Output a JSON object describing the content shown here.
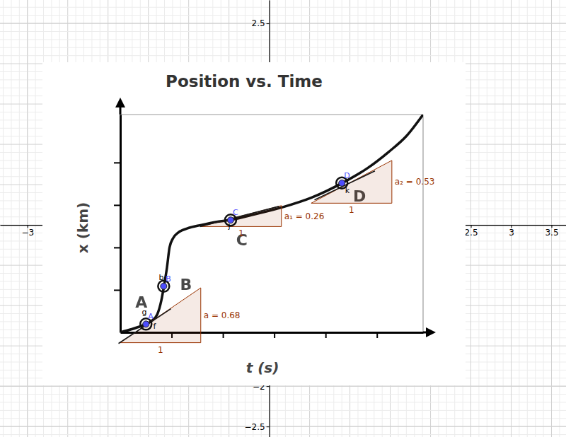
{
  "chart_data": [
    {
      "type": "scatter",
      "xlim": [
        -3.34,
        3.68
      ],
      "ylim": [
        -2.63,
        2.79
      ],
      "xticks": [
        {
          "value": -3,
          "label": "−3"
        },
        2.5,
        3,
        3.5
      ],
      "yticks": [
        2.5,
        {
          "value": -2,
          "label": "−2"
        },
        {
          "value": -2.5,
          "label": "−2.5"
        }
      ],
      "grid": true,
      "marker": "circle",
      "color": "#4d4dff",
      "points": [
        {
          "label": "A",
          "x": -1.53,
          "y": -1.23
        },
        {
          "label": "B",
          "x": -1.31,
          "y": -0.76
        },
        {
          "label": "C",
          "x": -0.48,
          "y": 0.06
        },
        {
          "label": "D",
          "x": 0.9,
          "y": 0.52
        }
      ],
      "object_labels": [
        {
          "text": "g",
          "x": -1.58,
          "y": -1.11
        },
        {
          "text": "f",
          "x": -1.44,
          "y": -1.29
        },
        {
          "text": "b",
          "x": -1.37,
          "y": -0.68
        },
        {
          "text": "j",
          "x": -0.51,
          "y": -0.04
        },
        {
          "text": "k",
          "x": 0.94,
          "y": 0.4
        }
      ],
      "tangents": [
        {
          "x1": -1.87,
          "y1": -1.47,
          "x2": -1.22,
          "y2": -1.04
        },
        {
          "x1": -0.86,
          "y1": -0.02,
          "x2": 0.12,
          "y2": 0.23
        },
        {
          "x1": 0.56,
          "y1": 0.31,
          "x2": 1.31,
          "y2": 0.67
        }
      ],
      "slope_triangles": [
        {
          "x": -1.85,
          "y": -1.46,
          "run": 1,
          "rise": 0.68,
          "label": "a = 0.68"
        },
        {
          "x": -0.85,
          "y": -0.02,
          "run": 1,
          "rise": 0.26,
          "label": "a₁ = 0.26"
        },
        {
          "x": 0.52,
          "y": 0.27,
          "run": 1,
          "rise": 0.53,
          "label": "a₂ = 0.53"
        }
      ]
    },
    {
      "type": "line",
      "title": "Position vs. Time",
      "x_label": "t (s)",
      "y_label": "x (km)",
      "x": [
        0,
        0.21,
        0.41,
        0.51,
        0.62,
        0.72,
        0.8,
        0.85,
        0.91,
        0.96,
        1.03,
        1.13,
        1.31,
        1.58,
        1.86,
        2.15,
        2.62,
        3.17,
        3.72,
        4.33,
        4.82,
        5.23,
        5.58,
        5.9
      ],
      "values": [
        0,
        0.07,
        0.15,
        0.2,
        0.28,
        0.42,
        0.75,
        1.08,
        1.53,
        2.0,
        2.22,
        2.35,
        2.45,
        2.53,
        2.6,
        2.65,
        2.78,
        2.95,
        3.17,
        3.52,
        3.87,
        4.25,
        4.63,
        5.13
      ],
      "xlim": [
        0,
        5.9
      ],
      "ylim": [
        0,
        5.13
      ],
      "xticks": [
        1,
        2,
        3,
        4,
        5
      ],
      "yticks": [
        1,
        2,
        3,
        4
      ],
      "tick_labels": false,
      "color": "#111111",
      "annotations": [
        {
          "text": "A",
          "x": 0.41,
          "y": 0.7
        },
        {
          "text": "B",
          "x": 1.28,
          "y": 1.13
        },
        {
          "text": "C",
          "x": 2.37,
          "y": 2.17
        },
        {
          "text": "D",
          "x": 4.66,
          "y": 3.2
        }
      ]
    }
  ]
}
